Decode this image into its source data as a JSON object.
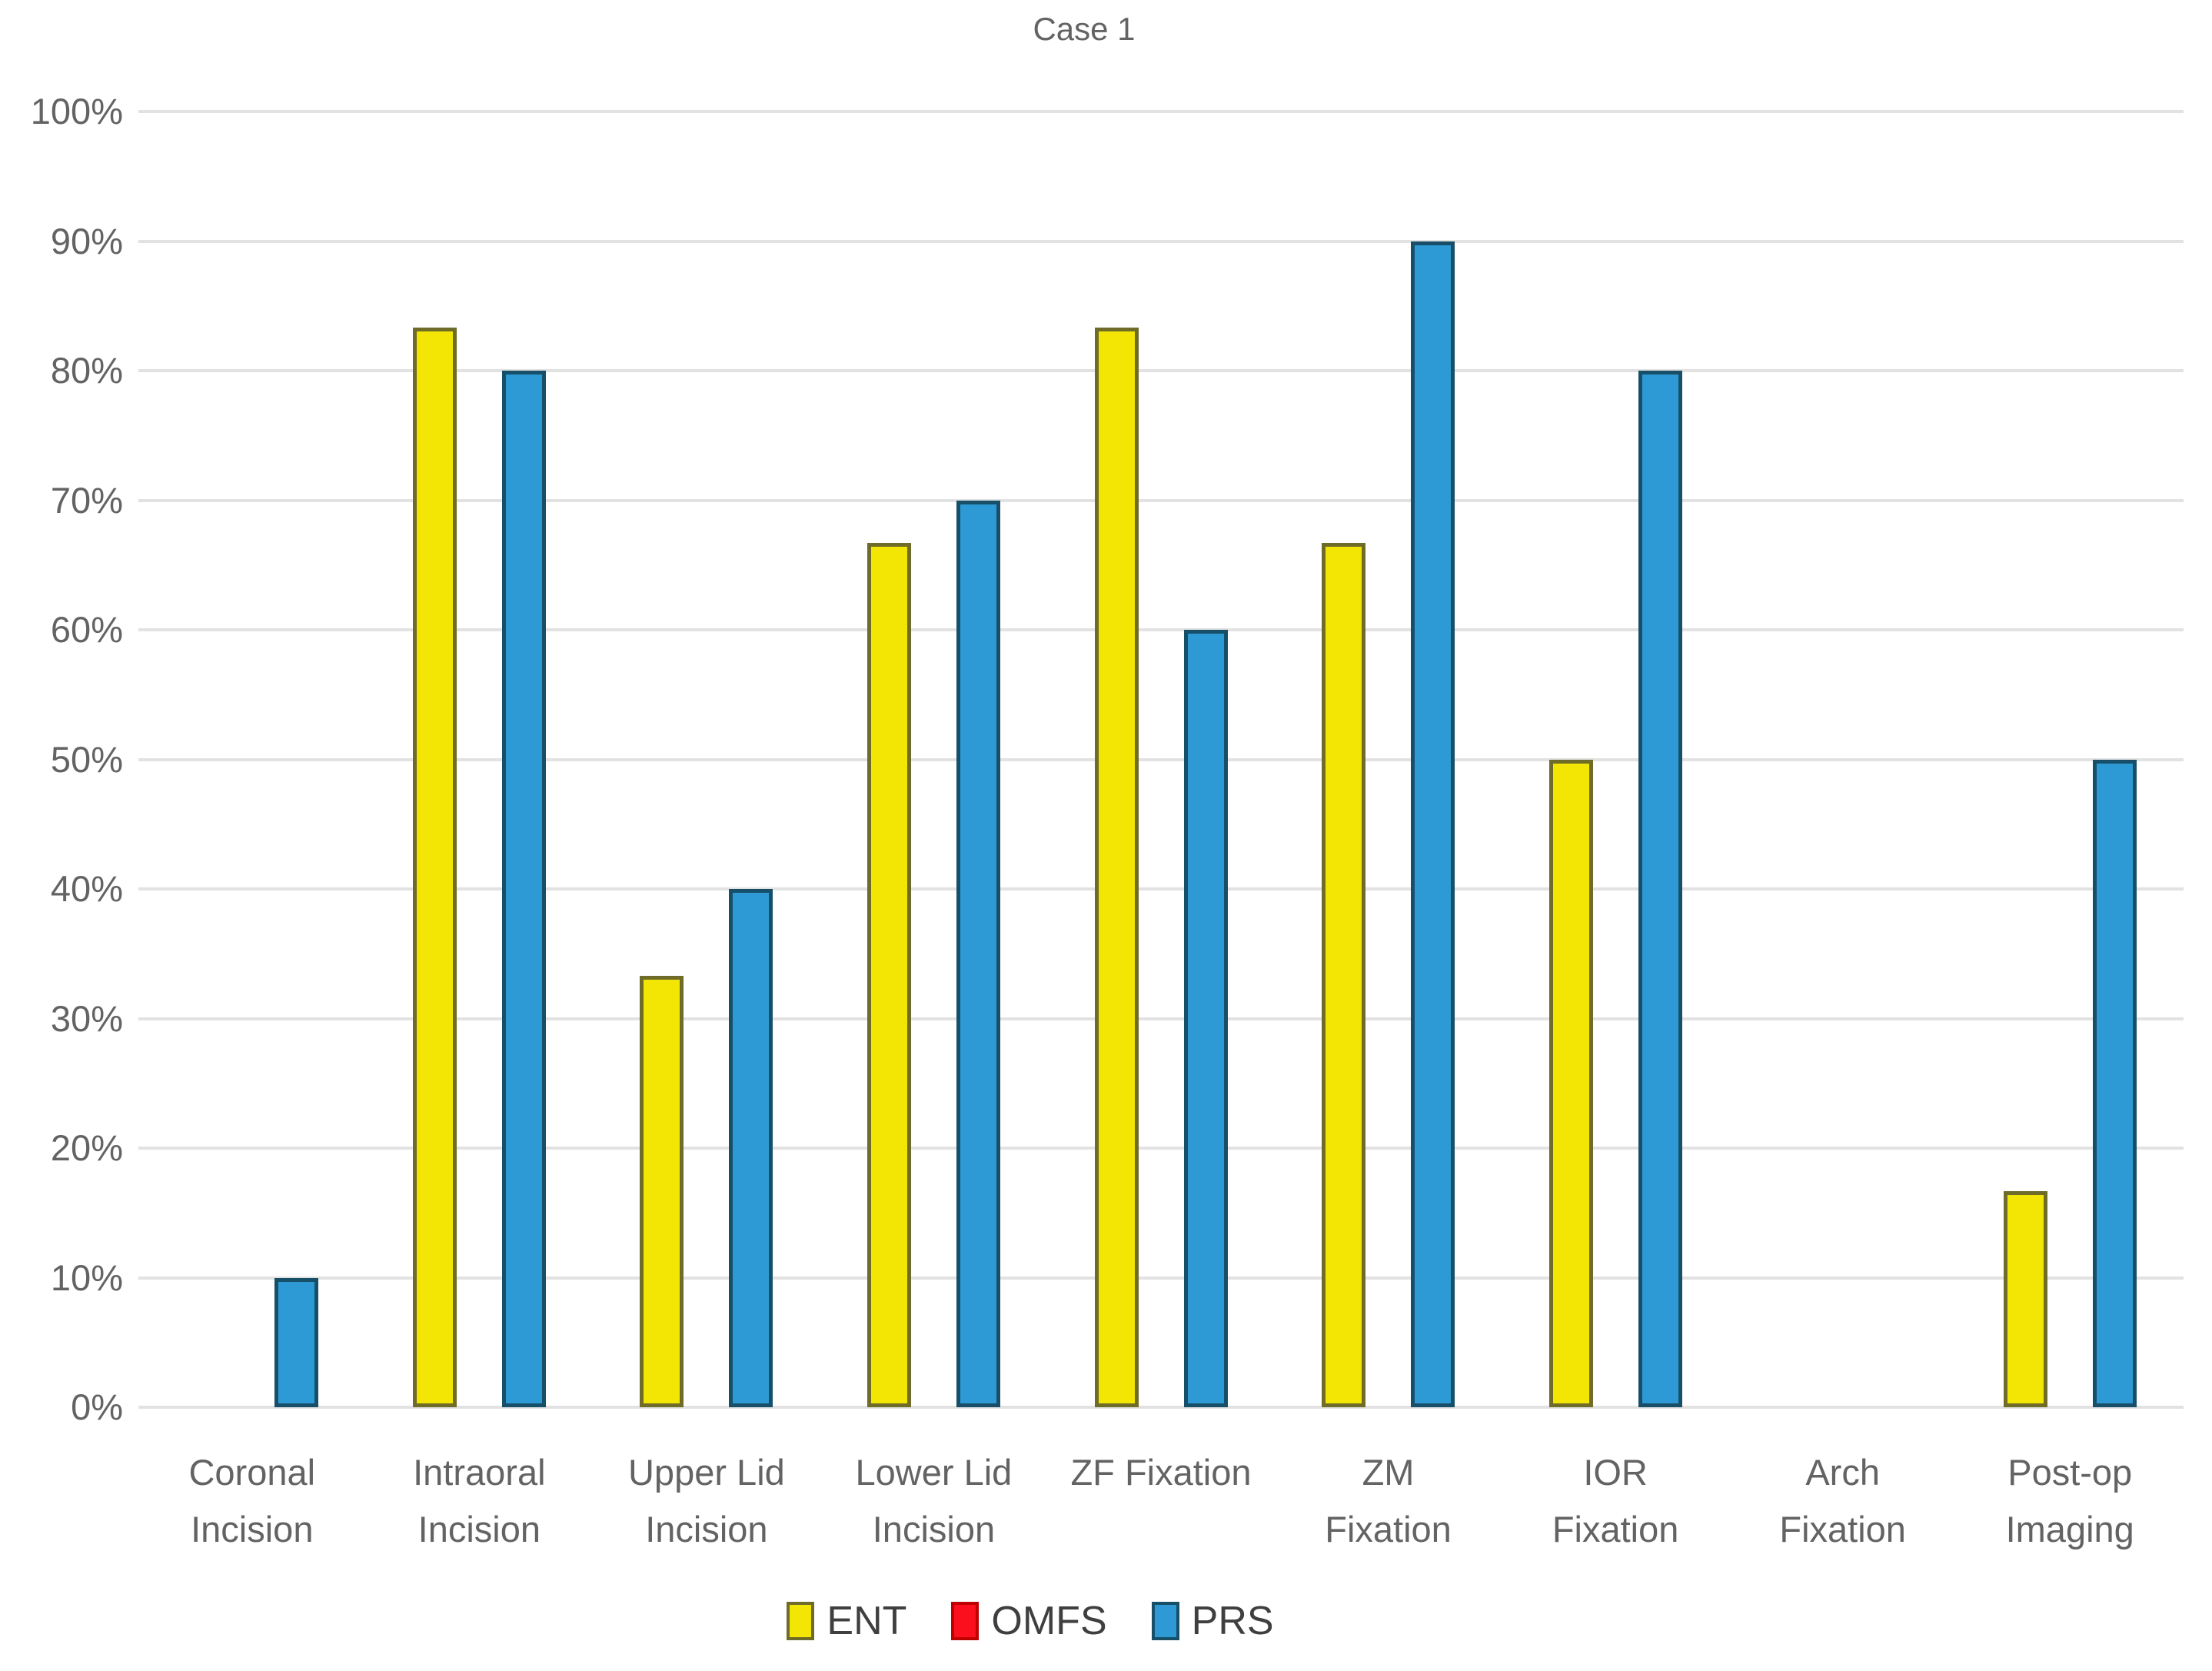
{
  "figure": {
    "background": "#FFFFFF",
    "text_color": "#636363",
    "grid_color": "#E2E2E2"
  },
  "chart_data": {
    "type": "bar",
    "title": "Case 1",
    "categories": [
      [
        "Coronal",
        "Incision"
      ],
      [
        "Intraoral",
        "Incision"
      ],
      [
        "Upper Lid",
        "Incision"
      ],
      [
        "Lower Lid",
        "Incision"
      ],
      [
        "ZF Fixation"
      ],
      [
        "ZM",
        "Fixation"
      ],
      [
        "IOR",
        "Fixation"
      ],
      [
        "Arch",
        "Fixation"
      ],
      [
        "Post-op",
        "Imaging"
      ]
    ],
    "series": [
      {
        "name": "ENT",
        "color": "#F3E604",
        "border_color": "#6F6B28",
        "values": [
          0,
          83.3,
          33.3,
          66.7,
          83.3,
          66.7,
          50,
          0,
          16.7
        ]
      },
      {
        "name": "OMFS",
        "color": "#FC0F1D",
        "border_color": "#C00000",
        "values": [
          0,
          0,
          0,
          0,
          0,
          0,
          0,
          0,
          0
        ]
      },
      {
        "name": "PRS",
        "color": "#2E9AD5",
        "border_color": "#184F68",
        "values": [
          10,
          80,
          40,
          70,
          60,
          90,
          80,
          0,
          50
        ]
      }
    ],
    "y_axis": {
      "min": 0,
      "max": 100,
      "step": 10,
      "tick_labels": [
        "100%",
        "90%",
        "80%",
        "70%",
        "60%",
        "50%",
        "40%",
        "30%",
        "20%",
        "10%",
        "0%"
      ]
    },
    "grid": true,
    "legend_position": "bottom"
  }
}
